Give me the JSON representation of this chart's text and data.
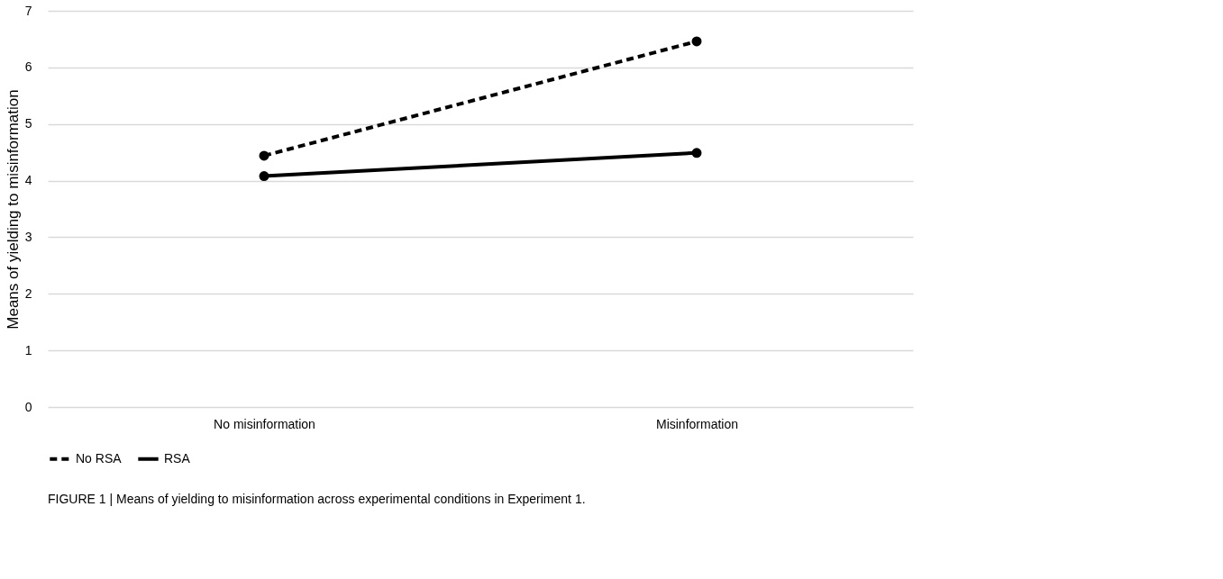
{
  "chart_data": {
    "type": "line",
    "ylabel": "Means of yielding to misinformation",
    "categories": [
      "No misinformation",
      "Misinformation"
    ],
    "series": [
      {
        "name": "No RSA",
        "color": "#000000",
        "values": [
          4.44,
          6.46
        ],
        "line_style": "dashed"
      },
      {
        "name": "RSA",
        "color": "#000000",
        "values": [
          4.08,
          4.49
        ],
        "line_style": "solid"
      }
    ],
    "ylim": [
      0,
      7
    ],
    "yticks": [
      0,
      1,
      2,
      3,
      4,
      5,
      6,
      7
    ],
    "grid": "y",
    "legend": "bottom",
    "marker": "circle",
    "annotations": [
      "FIGURE 1 | Means of yielding to misinformation across experimental conditions in Experiment 1."
    ]
  }
}
